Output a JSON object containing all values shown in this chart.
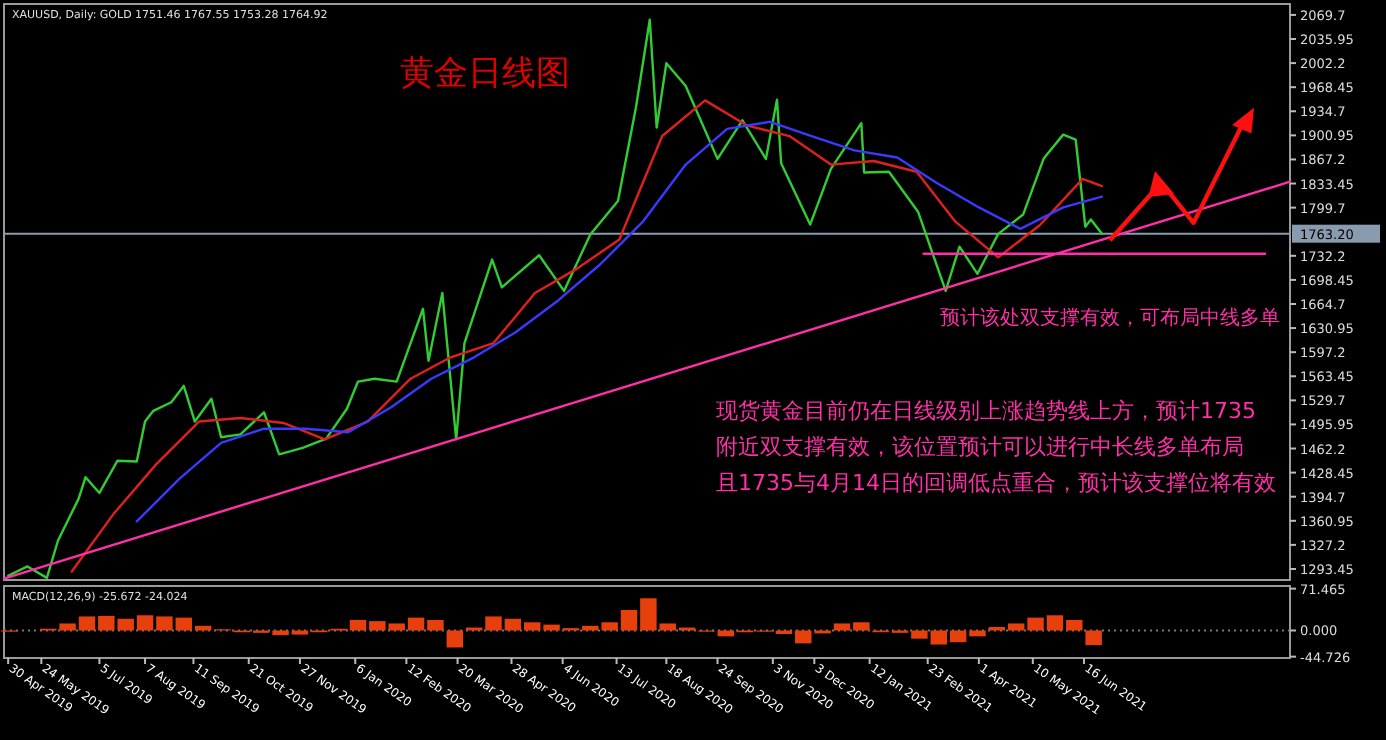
{
  "chart_data": [
    {
      "type": "line",
      "title": "黄金日线图",
      "annotations": [
        "XAUUSD, Daily: GOLD 1751.46 1767.55 1753.28 1764.92",
        "预计该处双支撑有效，可布局中线多单",
        "现货黄金目前仍在日线级别上涨趋势线上方，预计1735",
        "附近双支撑有效，该位置预计可以进行中长线多单布局",
        "且1735与4月14日的回调低点重合，预计该支撑位将有效"
      ],
      "xlim": [
        "2019-04-27",
        "2021-11-12"
      ],
      "ylim": [
        1278,
        2085
      ],
      "yticks": [
        2069.7,
        2035.95,
        2002.2,
        1968.45,
        1934.7,
        1900.95,
        1867.2,
        1833.45,
        1799.7,
        1732.2,
        1698.45,
        1664.7,
        1630.95,
        1597.2,
        1563.45,
        1529.7,
        1495.95,
        1462.2,
        1428.45,
        1394.7,
        1360.95,
        1327.2,
        1293.45
      ],
      "tick_labels": "y",
      "grid": false,
      "ref_lines": [
        {
          "axis": "y",
          "value": 1763.2,
          "label": "1763.20",
          "color": "#8a9bb0"
        }
      ],
      "series": [
        {
          "color": "#32cd32",
          "x": [
            "2019-04-30",
            "2019-05-14",
            "2019-05-28",
            "2019-06-05",
            "2019-06-20",
            "2019-06-25",
            "2019-07-05",
            "2019-07-18",
            "2019-08-01",
            "2019-08-07",
            "2019-08-13",
            "2019-08-26",
            "2019-09-04",
            "2019-09-12",
            "2019-09-24",
            "2019-10-01",
            "2019-10-15",
            "2019-11-01",
            "2019-11-12",
            "2019-11-29",
            "2019-12-16",
            "2019-12-31",
            "2020-01-08",
            "2020-01-20",
            "2020-02-05",
            "2020-02-24",
            "2020-02-28",
            "2020-03-09",
            "2020-03-19",
            "2020-03-25",
            "2020-04-14",
            "2020-04-21",
            "2020-05-18",
            "2020-06-05",
            "2020-06-24",
            "2020-07-14",
            "2020-07-27",
            "2020-08-06",
            "2020-08-11",
            "2020-08-18",
            "2020-09-01",
            "2020-09-24",
            "2020-10-12",
            "2020-10-29",
            "2020-11-06",
            "2020-11-09",
            "2020-11-30",
            "2020-12-15",
            "2021-01-06",
            "2021-01-08",
            "2021-01-26",
            "2021-02-16",
            "2021-03-08",
            "2021-03-18",
            "2021-03-31",
            "2021-04-15",
            "2021-05-03",
            "2021-05-18",
            "2021-06-01",
            "2021-06-10",
            "2021-06-17",
            "2021-06-21",
            "2021-06-29"
          ],
          "values": [
            1284,
            1297,
            1281,
            1333,
            1392,
            1422,
            1400,
            1445,
            1444,
            1500,
            1515,
            1527,
            1550,
            1500,
            1532,
            1478,
            1482,
            1513,
            1454,
            1463,
            1476,
            1518,
            1556,
            1560,
            1556,
            1658,
            1585,
            1680,
            1475,
            1610,
            1727,
            1688,
            1733,
            1683,
            1762,
            1809,
            1940,
            2063,
            1912,
            2002,
            1970,
            1868,
            1922,
            1868,
            1951,
            1862,
            1776,
            1854,
            1918,
            1849,
            1850,
            1794,
            1683,
            1745,
            1707,
            1763,
            1790,
            1869,
            1902,
            1895,
            1773,
            1783,
            1763
          ]
        },
        {
          "color": "#e0201e",
          "x": [
            "2019-06-15",
            "2019-07-15",
            "2019-08-15",
            "2019-09-15",
            "2019-10-15",
            "2019-11-15",
            "2019-12-15",
            "2020-01-15",
            "2020-02-15",
            "2020-03-15",
            "2020-04-15",
            "2020-05-15",
            "2020-06-15",
            "2020-07-15",
            "2020-08-15",
            "2020-09-15",
            "2020-10-15",
            "2020-11-15",
            "2020-12-15",
            "2021-01-15",
            "2021-02-15",
            "2021-03-15",
            "2021-04-15",
            "2021-05-15",
            "2021-06-15",
            "2021-06-29"
          ],
          "values": [
            1290,
            1370,
            1440,
            1500,
            1505,
            1498,
            1475,
            1500,
            1560,
            1590,
            1610,
            1680,
            1715,
            1755,
            1900,
            1950,
            1915,
            1900,
            1860,
            1865,
            1850,
            1780,
            1730,
            1775,
            1840,
            1830
          ]
        },
        {
          "color": "#3a3aff",
          "x": [
            "2019-08-01",
            "2019-09-01",
            "2019-10-01",
            "2019-11-01",
            "2019-12-01",
            "2020-01-01",
            "2020-02-01",
            "2020-03-01",
            "2020-04-01",
            "2020-05-01",
            "2020-06-01",
            "2020-07-01",
            "2020-08-01",
            "2020-09-01",
            "2020-10-01",
            "2020-11-01",
            "2020-12-01",
            "2021-01-01",
            "2021-02-01",
            "2021-03-01",
            "2021-04-01",
            "2021-05-01",
            "2021-06-01",
            "2021-06-29"
          ],
          "values": [
            1360,
            1420,
            1470,
            1490,
            1490,
            1485,
            1520,
            1560,
            1590,
            1625,
            1670,
            1720,
            1780,
            1860,
            1910,
            1920,
            1900,
            1880,
            1870,
            1835,
            1800,
            1770,
            1800,
            1815
          ]
        },
        {
          "color": "#ff2fa8",
          "x": [
            "2019-04-27",
            "2021-11-12"
          ],
          "values": [
            1280,
            1836
          ]
        },
        {
          "color": "#ff2fa8",
          "x": [
            "2021-02-20",
            "2021-10-25"
          ],
          "values": [
            1735,
            1735
          ]
        }
      ]
    },
    {
      "type": "bar",
      "title": "MACD(12,26,9) -25.672 -24.024",
      "tick_labels": "xy",
      "grid": false,
      "ref_lines": [
        {
          "axis": "y",
          "value": 0,
          "color": "#777777",
          "line_style": "dotted"
        }
      ],
      "xlim": [
        "2019-04-27",
        "2021-11-12"
      ],
      "ylim": [
        -47,
        76
      ],
      "yticks": [
        {
          "value": 71.465,
          "label": "71.465"
        },
        {
          "value": 0,
          "label": "0.000"
        },
        {
          "value": -44.726,
          "label": "-44.726"
        }
      ],
      "xticks": [
        {
          "value": "2019-04-30",
          "label": "30 Apr 2019"
        },
        {
          "value": "2019-05-24",
          "label": "24 May 2019"
        },
        {
          "value": "2019-07-05",
          "label": "5 Jul 2019"
        },
        {
          "value": "2019-08-07",
          "label": "7 Aug 2019"
        },
        {
          "value": "2019-09-11",
          "label": "11 Sep 2019"
        },
        {
          "value": "2019-10-21",
          "label": "21 Oct 2019"
        },
        {
          "value": "2019-11-27",
          "label": "27 Nov 2019"
        },
        {
          "value": "2020-01-06",
          "label": "6 Jan 2020"
        },
        {
          "value": "2020-02-12",
          "label": "12 Feb 2020"
        },
        {
          "value": "2020-03-20",
          "label": "20 Mar 2020"
        },
        {
          "value": "2020-04-28",
          "label": "28 Apr 2020"
        },
        {
          "value": "2020-06-04",
          "label": "4 Jun 2020"
        },
        {
          "value": "2020-07-13",
          "label": "13 Jul 2020"
        },
        {
          "value": "2020-08-18",
          "label": "18 Aug 2020"
        },
        {
          "value": "2020-09-24",
          "label": "24 Sep 2020"
        },
        {
          "value": "2020-11-03",
          "label": "3 Nov 2020"
        },
        {
          "value": "2020-12-03",
          "label": "3 Dec 2020"
        },
        {
          "value": "2021-01-12",
          "label": "12 Jan 2021"
        },
        {
          "value": "2021-02-23",
          "label": "23 Feb 2021"
        },
        {
          "value": "2021-04-01",
          "label": "1 Apr 2021"
        },
        {
          "value": "2021-05-10",
          "label": "10 May 2021"
        },
        {
          "value": "2021-06-16",
          "label": "16 Jun 2021"
        }
      ],
      "series": [
        {
          "color": "#e8400c",
          "x": [
            "2019-05-01",
            "2019-05-15",
            "2019-05-29",
            "2019-06-12",
            "2019-06-26",
            "2019-07-10",
            "2019-07-24",
            "2019-08-07",
            "2019-08-21",
            "2019-09-04",
            "2019-09-18",
            "2019-10-02",
            "2019-10-16",
            "2019-10-30",
            "2019-11-13",
            "2019-11-27",
            "2019-12-11",
            "2019-12-25",
            "2020-01-08",
            "2020-01-22",
            "2020-02-05",
            "2020-02-19",
            "2020-03-04",
            "2020-03-18",
            "2020-04-01",
            "2020-04-15",
            "2020-04-29",
            "2020-05-13",
            "2020-05-27",
            "2020-06-10",
            "2020-06-24",
            "2020-07-08",
            "2020-07-22",
            "2020-08-05",
            "2020-08-19",
            "2020-09-02",
            "2020-09-16",
            "2020-09-30",
            "2020-10-14",
            "2020-10-28",
            "2020-11-11",
            "2020-11-25",
            "2020-12-09",
            "2020-12-23",
            "2021-01-06",
            "2021-01-20",
            "2021-02-03",
            "2021-02-17",
            "2021-03-03",
            "2021-03-17",
            "2021-03-31",
            "2021-04-14",
            "2021-04-28",
            "2021-05-12",
            "2021-05-26",
            "2021-06-09",
            "2021-06-23"
          ],
          "values": [
            -2,
            0,
            3,
            12,
            24,
            25,
            20,
            26,
            24,
            22,
            8,
            2,
            -3,
            -4,
            -8,
            -7,
            -3,
            3,
            18,
            16,
            12,
            22,
            18,
            -29,
            5,
            24,
            20,
            14,
            10,
            4,
            8,
            14,
            35,
            55,
            12,
            5,
            -2,
            -10,
            -3,
            -2,
            -6,
            -22,
            -5,
            12,
            14,
            -3,
            -4,
            -14,
            -24,
            -20,
            -10,
            6,
            12,
            22,
            26,
            18,
            -25
          ]
        }
      ]
    }
  ]
}
